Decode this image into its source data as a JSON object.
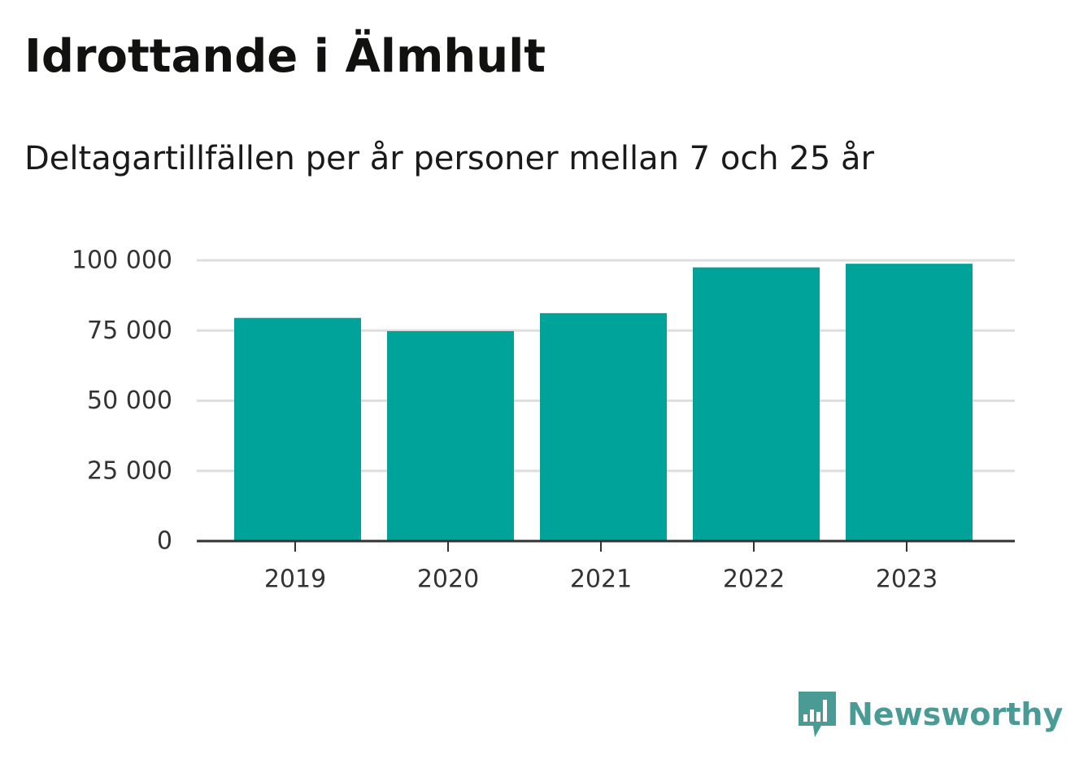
{
  "header": {
    "title": "Idrottande i Älmhult",
    "subtitle": "Deltagartillfällen per år personer mellan 7 och 25 år"
  },
  "brand": {
    "name": "Newsworthy",
    "logo_icon": "bar-chart-speech-bubble-icon",
    "color": "#4a9b96"
  },
  "chart_data": {
    "type": "bar",
    "categories": [
      "2019",
      "2020",
      "2021",
      "2022",
      "2023"
    ],
    "values": [
      79500,
      74800,
      81200,
      97500,
      98800
    ],
    "ylim": [
      0,
      100000
    ],
    "yticks": [
      0,
      25000,
      50000,
      75000,
      100000
    ],
    "ytick_labels": [
      "0",
      "25 000",
      "50 000",
      "75 000",
      "100 000"
    ],
    "grid": true,
    "bar_color": "#00a39a",
    "grid_color": "#dedede",
    "axis_color": "#333333"
  }
}
